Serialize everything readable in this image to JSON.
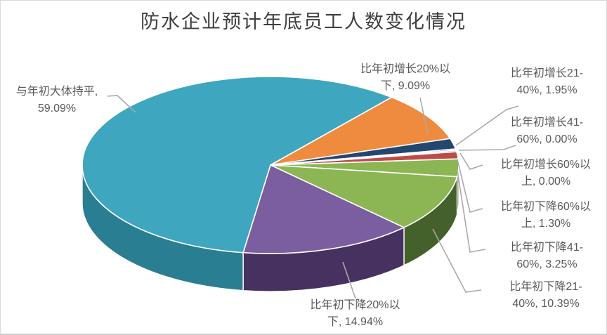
{
  "title": "防水企业预计年底员工人数变化情况",
  "chart_data": {
    "type": "pie",
    "title": "防水企业预计年底员工人数变化情况",
    "is_3d": true,
    "legend": "none",
    "data_labels": "outside, category name + percentage, gray leader lines",
    "start_angle_deg": 40,
    "unit": "percent",
    "slices": [
      {
        "label": "比年初增长20%以下",
        "value": 9.09,
        "color": "#EF8B3E",
        "side_color": "#a85f22"
      },
      {
        "label": "比年初增长21-40%",
        "value": 1.95,
        "color": "#24466F",
        "side_color": "#16293f"
      },
      {
        "label": "比年初增长41-60%",
        "value": 0.0,
        "color": "#4F81BD",
        "side_color": "#33567f"
      },
      {
        "label": "比年初增长60%以上",
        "value": 0.0,
        "color": "#4F81BD",
        "side_color": "#33567f"
      },
      {
        "label": "比年初下降60%以上",
        "value": 1.3,
        "color": "#BF4B47",
        "side_color": "#84332f"
      },
      {
        "label": "比年初下降41-60%",
        "value": 3.25,
        "color": "#8CB553",
        "side_color": "#44602b"
      },
      {
        "label": "比年初下降21-40%",
        "value": 10.39,
        "color": "#8CB553",
        "side_color": "#44602b"
      },
      {
        "label": "比年初下降20%以下",
        "value": 14.94,
        "color": "#7B5E9F",
        "side_color": "#463160"
      },
      {
        "label": "与年初大体持平",
        "value": 59.09,
        "color": "#3EA6BE",
        "side_color": "#2a7e91"
      }
    ],
    "colors_note": {
      "leader_line": "#a9a9a9",
      "label_text": "#595959",
      "title_text": "#3f3f3f",
      "slice_border": "#ffffff"
    }
  },
  "labels": [
    {
      "lines": [
        "比年初增长20%以",
        "下, 9.09%"
      ]
    },
    {
      "lines": [
        "比年初增长21-",
        "40%, 1.95%"
      ]
    },
    {
      "lines": [
        "比年初增长41-",
        "60%, 0.00%"
      ]
    },
    {
      "lines": [
        "比年初增长60%以",
        "上, 0.00%"
      ]
    },
    {
      "lines": [
        "比年初下降60%以",
        "上, 1.30%"
      ]
    },
    {
      "lines": [
        "比年初下降41-",
        "60%, 3.25%"
      ]
    },
    {
      "lines": [
        "比年初下降21-",
        "40%, 10.39%"
      ]
    },
    {
      "lines": [
        "比年初下降20%以",
        "下, 14.94%"
      ]
    },
    {
      "lines": [
        "与年初大体持平,",
        "59.09%"
      ]
    }
  ]
}
